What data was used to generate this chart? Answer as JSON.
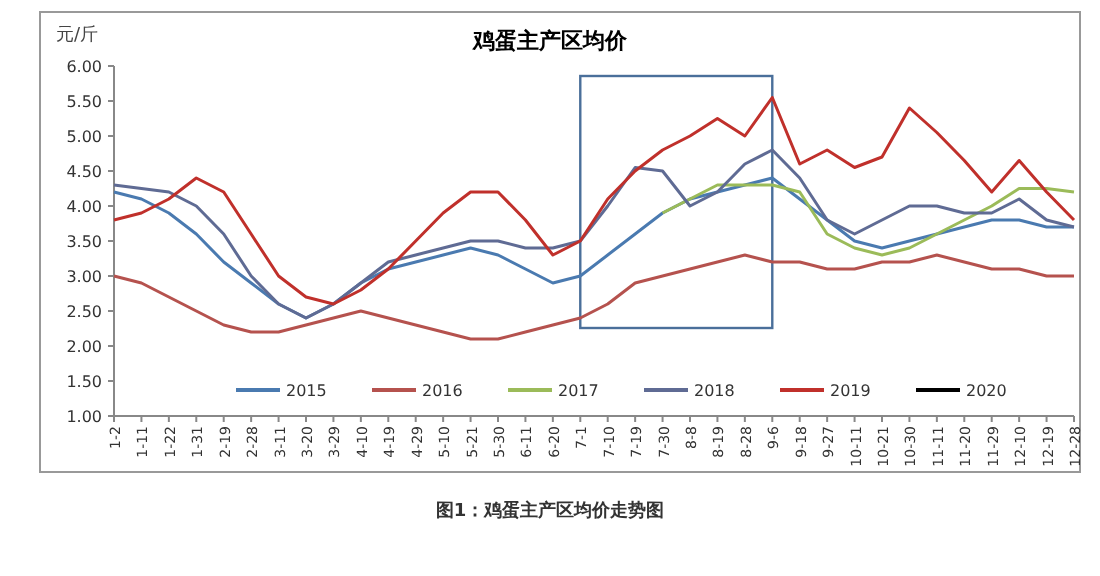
{
  "chart_data": {
    "type": "line",
    "title": "鸡蛋主产区均价",
    "ylabel": "元/斤",
    "annotations": [
      "图1：鸡蛋主产区均价走势图"
    ],
    "categories": [
      "1-2",
      "1-11",
      "1-22",
      "1-31",
      "2-19",
      "2-28",
      "3-11",
      "3-20",
      "3-29",
      "4-10",
      "4-19",
      "4-29",
      "5-10",
      "5-21",
      "5-30",
      "6-11",
      "6-20",
      "7-1",
      "7-10",
      "7-19",
      "7-30",
      "8-8",
      "8-19",
      "8-28",
      "9-6",
      "9-18",
      "9-27",
      "10-11",
      "10-21",
      "10-30",
      "11-11",
      "11-20",
      "11-29",
      "12-10",
      "12-19",
      "12-28"
    ],
    "ylim": [
      1,
      6
    ],
    "yticks": [
      {
        "value": 1,
        "label": "1.00"
      },
      {
        "value": 1.5,
        "label": "1.50"
      },
      {
        "value": 2,
        "label": "2.00"
      },
      {
        "value": 2.5,
        "label": "2.50"
      },
      {
        "value": 3,
        "label": "3.00"
      },
      {
        "value": 3.5,
        "label": "3.50"
      },
      {
        "value": 4,
        "label": "4.00"
      },
      {
        "value": 4.5,
        "label": "4.50"
      },
      {
        "value": 5,
        "label": "5.00"
      },
      {
        "value": 5.5,
        "label": "5.50"
      },
      {
        "value": 6,
        "label": "6.00"
      }
    ],
    "grid": false,
    "legend": "bottom",
    "marker": "none",
    "line_style": "solid",
    "series": [
      {
        "name": "2015",
        "color": "#4a7ab0",
        "values": [
          4.2,
          4.1,
          3.9,
          3.6,
          3.2,
          2.9,
          2.6,
          2.4,
          2.6,
          2.9,
          3.1,
          3.2,
          3.3,
          3.4,
          3.3,
          3.1,
          2.9,
          3.0,
          3.3,
          3.6,
          3.9,
          4.1,
          4.2,
          4.3,
          4.4,
          4.1,
          3.8,
          3.5,
          3.4,
          3.5,
          3.6,
          3.7,
          3.8,
          3.8,
          3.7,
          3.7
        ]
      },
      {
        "name": "2016",
        "color": "#b5524e",
        "values": [
          3.0,
          2.9,
          2.7,
          2.5,
          2.3,
          2.2,
          2.2,
          2.3,
          2.4,
          2.5,
          2.4,
          2.3,
          2.2,
          2.1,
          2.1,
          2.2,
          2.3,
          2.4,
          2.6,
          2.9,
          3.0,
          3.1,
          3.2,
          3.3,
          3.2,
          3.2,
          3.1,
          3.1,
          3.2,
          3.2,
          3.3,
          3.2,
          3.1,
          3.1,
          3.0,
          3.0
        ]
      },
      {
        "name": "2017",
        "color": "#9bbb59",
        "values": [
          null,
          null,
          null,
          null,
          null,
          null,
          null,
          null,
          null,
          null,
          null,
          null,
          null,
          null,
          null,
          null,
          null,
          null,
          null,
          null,
          3.9,
          4.1,
          4.3,
          4.3,
          4.3,
          4.2,
          3.6,
          3.4,
          3.3,
          3.4,
          3.6,
          3.8,
          4.0,
          4.25,
          4.25,
          4.2
        ]
      },
      {
        "name": "2018",
        "color": "#5f6b94",
        "values": [
          4.3,
          4.25,
          4.2,
          4.0,
          3.6,
          3.0,
          2.6,
          2.4,
          2.6,
          2.9,
          3.2,
          3.3,
          3.4,
          3.5,
          3.5,
          3.4,
          3.4,
          3.5,
          4.0,
          4.55,
          4.5,
          4.0,
          4.2,
          4.6,
          4.8,
          4.4,
          3.8,
          3.6,
          3.8,
          4.0,
          4.0,
          3.9,
          3.9,
          4.1,
          3.8,
          3.7
        ]
      },
      {
        "name": "2019",
        "color": "#c0302b",
        "values": [
          3.8,
          3.9,
          4.1,
          4.4,
          4.2,
          3.6,
          3.0,
          2.7,
          2.6,
          2.8,
          3.1,
          3.5,
          3.9,
          4.2,
          4.2,
          3.8,
          3.3,
          3.5,
          4.1,
          4.5,
          4.8,
          5.0,
          5.25,
          5.0,
          5.55,
          4.6,
          4.8,
          4.55,
          4.7,
          5.4,
          5.05,
          4.65,
          4.2,
          4.65,
          4.2,
          3.8
        ]
      },
      {
        "name": "2020",
        "color": "#000000",
        "values": [
          null,
          null,
          null,
          null,
          null,
          null,
          null,
          null,
          null,
          null,
          null,
          null,
          null,
          null,
          null,
          null,
          null,
          null,
          null,
          null,
          null,
          null,
          null,
          null,
          null,
          null,
          null,
          null,
          null,
          null,
          null,
          null,
          null,
          null,
          null,
          null
        ]
      }
    ]
  }
}
